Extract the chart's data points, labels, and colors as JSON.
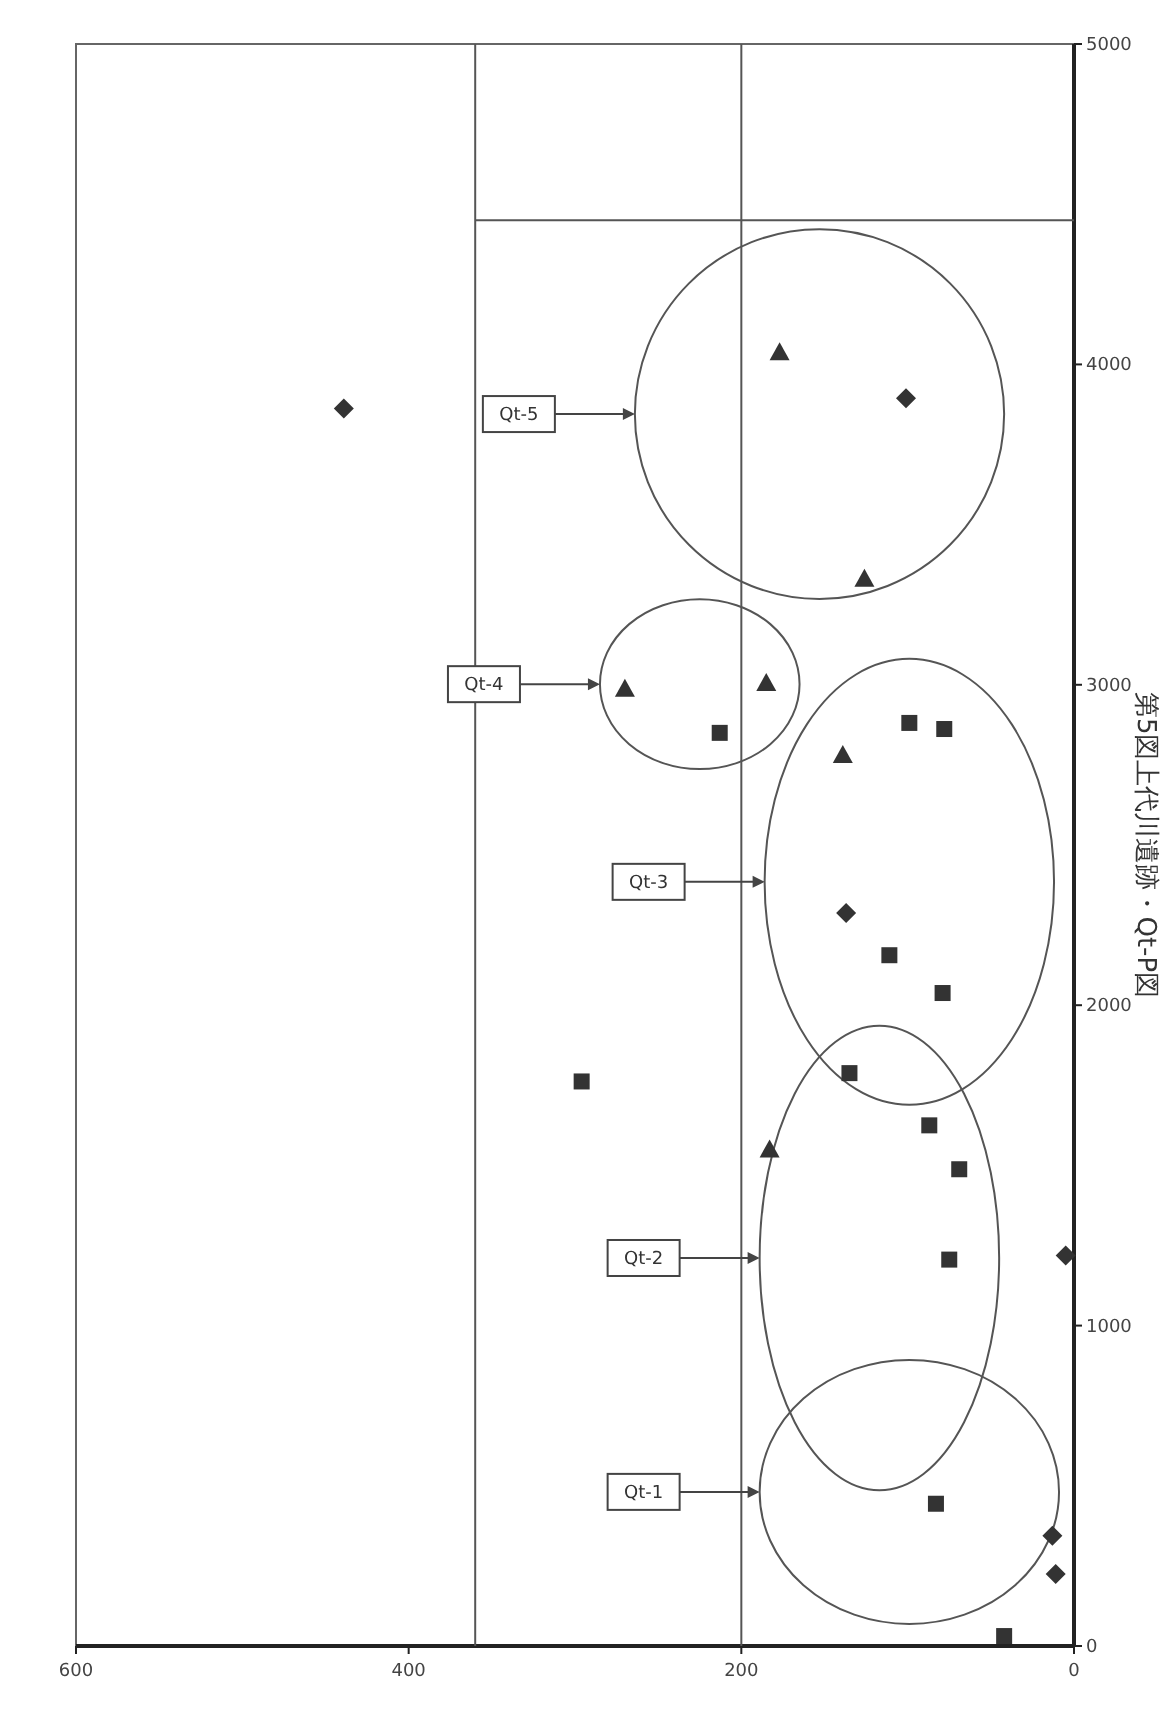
{
  "chart_data": {
    "type": "scatter",
    "title": "第5図上代川遺跡・Qt-P図",
    "xlim": [
      600,
      0
    ],
    "xticks": [
      600,
      400,
      200,
      0
    ],
    "ylim": [
      0,
      5000
    ],
    "yticks": [
      0,
      1000,
      2000,
      3000,
      4000,
      5000
    ],
    "grid": false,
    "series": [
      {
        "color": "#333333",
        "marker": "diamond",
        "x": [
          439,
          13,
          101,
          137,
          5,
          11
        ],
        "values": [
          3862,
          344,
          3894,
          2288,
          1219,
          225
        ]
      },
      {
        "color": "#333333",
        "marker": "square",
        "x": [
          296,
          83,
          42,
          87,
          69,
          75,
          135,
          111,
          79,
          99,
          78,
          213
        ],
        "values": [
          1762,
          444,
          31,
          1625,
          1488,
          1206,
          1788,
          2156,
          2038,
          2881,
          2862,
          2850
        ]
      },
      {
        "color": "#333333",
        "marker": "triangle",
        "x": [
          183,
          139,
          270,
          185,
          177,
          126
        ],
        "values": [
          1550,
          2781,
          2988,
          3006,
          4038,
          3331
        ]
      }
    ],
    "ref_lines": [
      {
        "axis": "x",
        "value": 200
      },
      {
        "axis": "x",
        "value": 360
      },
      {
        "axis": "y",
        "value": 4450
      }
    ],
    "annotations": [
      "Qt-1",
      "Qt-2",
      "Qt-3",
      "Qt-4",
      "Qt-5"
    ]
  }
}
